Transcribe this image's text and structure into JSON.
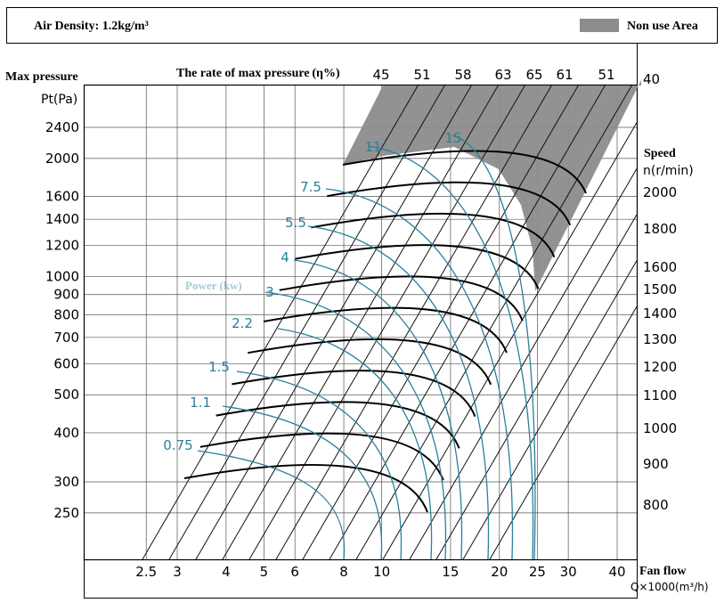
{
  "header": {
    "air_density": "Air Density: 1.2kg/m³",
    "legend_label": "Non use Area",
    "legend_color": "#8c8c8c"
  },
  "labels": {
    "max_pressure": "Max pressure",
    "pt_unit": "Pt(Pa)",
    "efficiency_title": "The rate of max pressure (η%)",
    "speed_title": "Speed",
    "speed_unit": "n(r/min)",
    "flow_title": "Fan flow",
    "flow_unit": "Q×1000(m³/h)",
    "power_title": "Power (kw)"
  },
  "colors": {
    "power_curve": "#2a7f9e",
    "power_label": "#2a7f9e",
    "power_title": "#a9c8d6",
    "speed_curve": "#000000",
    "grid": "#555555",
    "non_use_area": "#8c8c8c"
  },
  "chart_data": {
    "type": "line",
    "scale": "log-log",
    "x_axis": {
      "label": "Fan flow",
      "unit": "Q×1000(m³/h)",
      "ticks": [
        2.5,
        3,
        4,
        5,
        6,
        8,
        10,
        15,
        20,
        25,
        30,
        40
      ]
    },
    "y_axis": {
      "label": "Pt(Pa)",
      "ticks": [
        250,
        300,
        400,
        500,
        600,
        700,
        800,
        900,
        1000,
        1200,
        1400,
        1600,
        2000,
        2400
      ]
    },
    "efficiency_ticks": [
      45,
      51,
      58,
      63,
      65,
      61,
      51
    ],
    "speed_ticks": [
      40,
      2000,
      1800,
      1600,
      1500,
      1400,
      1300,
      1200,
      1100,
      1000,
      900,
      800
    ],
    "speed_curve_rpm": [
      2000,
      1800,
      1600,
      1500,
      1400,
      1300,
      1200,
      1100,
      1000,
      900,
      800
    ],
    "power_curves_kw": [
      0.75,
      1.1,
      1.5,
      2.2,
      3,
      4,
      5.5,
      7.5,
      11,
      15
    ],
    "non_use_area": "high-flow region beyond the max-efficiency boundary (upper right)"
  }
}
